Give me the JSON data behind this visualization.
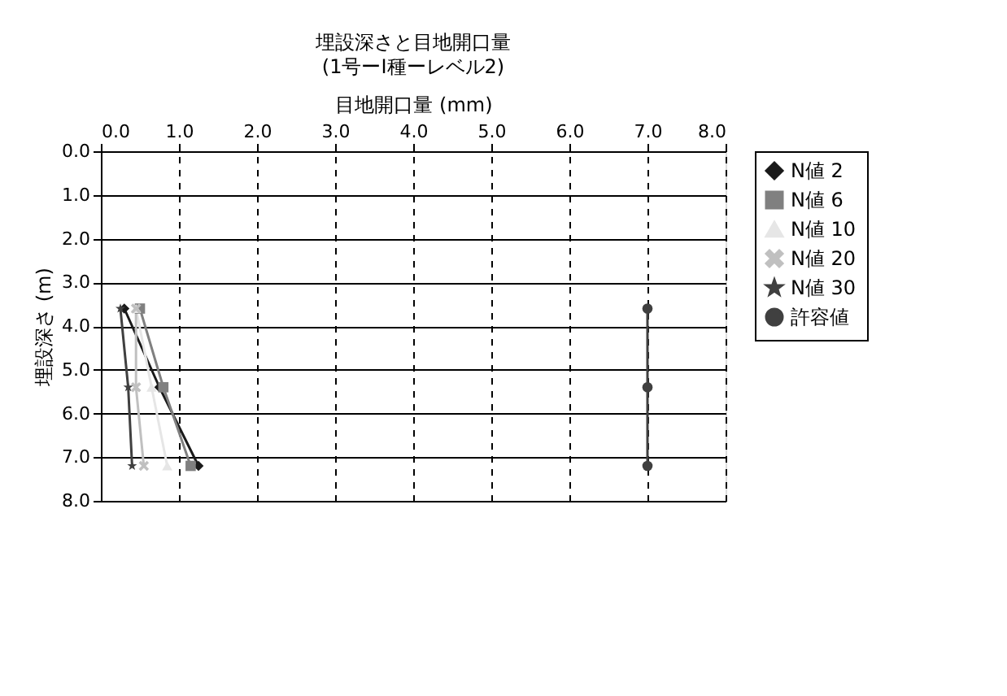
{
  "chart_data": {
    "type": "line",
    "title": "埋設深さと目地開口量",
    "subtitle": "(1号ーⅠ種ーレベル2)",
    "xlabel": "目地開口量 (mm)",
    "ylabel": "埋設深さ (m)",
    "series": [
      {
        "name": "N値 2",
        "color": "#1a1a1a",
        "marker": "diamond",
        "x": [
          0.3,
          0.75,
          1.25
        ],
        "values": [
          3.6,
          5.4,
          7.2
        ]
      },
      {
        "name": "N値 6",
        "color": "#808080",
        "marker": "square",
        "x": [
          0.5,
          0.8,
          1.15
        ],
        "values": [
          3.6,
          5.4,
          7.2
        ]
      },
      {
        "name": "N値 10",
        "color": "#e6e6e6",
        "marker": "triangle",
        "x": [
          0.45,
          0.65,
          0.85
        ],
        "values": [
          3.6,
          5.4,
          7.2
        ]
      },
      {
        "name": "N値 20",
        "color": "#c0c0c0",
        "marker": "cross",
        "x": [
          0.45,
          0.45,
          0.55
        ],
        "values": [
          3.6,
          5.4,
          7.2
        ]
      },
      {
        "name": "N値 30",
        "color": "#404040",
        "marker": "star",
        "x": [
          0.25,
          0.35,
          0.4
        ],
        "values": [
          3.6,
          5.4,
          7.2
        ]
      },
      {
        "name": "許容値",
        "color": "#404040",
        "marker": "circle",
        "x": [
          7.0,
          7.0,
          7.0
        ],
        "values": [
          3.6,
          5.4,
          7.2
        ]
      }
    ],
    "xlim": [
      0,
      8
    ],
    "xticks": [
      {
        "value": 0,
        "label": "0.0"
      },
      {
        "value": 1,
        "label": "1.0"
      },
      {
        "value": 2,
        "label": "2.0"
      },
      {
        "value": 3,
        "label": "3.0"
      },
      {
        "value": 4,
        "label": "4.0"
      },
      {
        "value": 5,
        "label": "5.0"
      },
      {
        "value": 6,
        "label": "6.0"
      },
      {
        "value": 7,
        "label": "7.0"
      },
      {
        "value": 8,
        "label": "8.0"
      }
    ],
    "ylim": [
      8,
      0
    ],
    "yticks": [
      {
        "value": 0,
        "label": "0.0"
      },
      {
        "value": 1,
        "label": "1.0"
      },
      {
        "value": 2,
        "label": "2.0"
      },
      {
        "value": 3,
        "label": "3.0"
      },
      {
        "value": 4,
        "label": "4.0"
      },
      {
        "value": 5,
        "label": "5.0"
      },
      {
        "value": 6,
        "label": "6.0"
      },
      {
        "value": 7,
        "label": "7.0"
      },
      {
        "value": 8,
        "label": "8.0"
      }
    ],
    "grid": true,
    "legend": "right",
    "line_style": "solid"
  }
}
